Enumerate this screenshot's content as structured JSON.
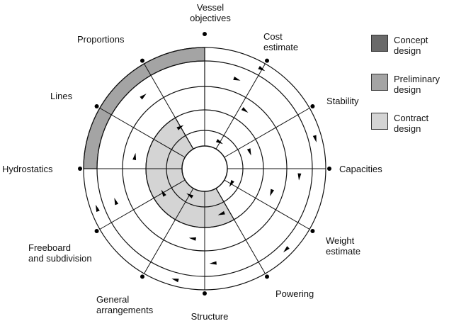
{
  "spokes": [
    {
      "lines": [
        "Vessel",
        "objectives"
      ]
    },
    {
      "lines": [
        "Cost",
        "estimate"
      ]
    },
    {
      "lines": [
        "Stability"
      ]
    },
    {
      "lines": [
        "Capacities"
      ]
    },
    {
      "lines": [
        "Weight",
        "estimate"
      ]
    },
    {
      "lines": [
        "Powering"
      ]
    },
    {
      "lines": [
        "Structure"
      ]
    },
    {
      "lines": [
        "General",
        "arrangements"
      ]
    },
    {
      "lines": [
        "Freeboard",
        "and subdivision"
      ]
    },
    {
      "lines": [
        "Hydrostatics"
      ]
    },
    {
      "lines": [
        "Lines"
      ]
    },
    {
      "lines": [
        "Proportions"
      ]
    }
  ],
  "legend": [
    {
      "lines": [
        "Concept",
        "design"
      ],
      "color": "#6a6a6a"
    },
    {
      "lines": [
        "Preliminary",
        "design"
      ],
      "color": "#a4a4a4"
    },
    {
      "lines": [
        "Contract",
        "design"
      ],
      "color": "#d4d4d4"
    }
  ]
}
